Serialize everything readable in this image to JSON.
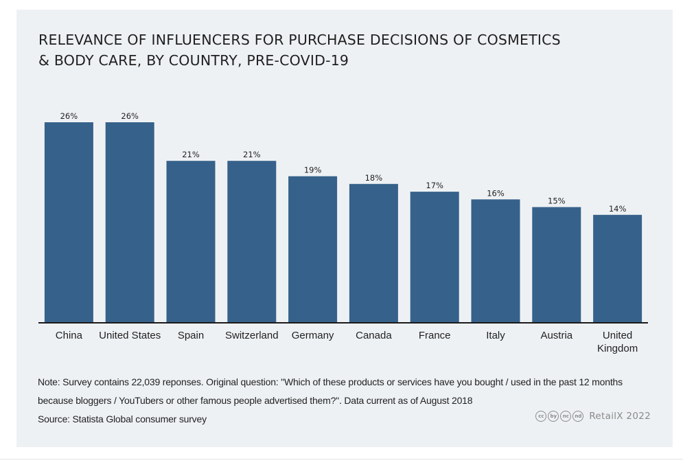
{
  "title_lines": [
    "RELEVANCE OF INFLUENCERS FOR PURCHASE DECISIONS OF COSMETICS",
    "& BODY CARE, BY COUNTRY, PRE-COVID-19"
  ],
  "chart_data": {
    "type": "bar",
    "categories": [
      [
        "China"
      ],
      [
        "United States"
      ],
      [
        "Spain"
      ],
      [
        "Switzerland"
      ],
      [
        "Germany"
      ],
      [
        "Canada"
      ],
      [
        "France"
      ],
      [
        "Italy"
      ],
      [
        "Austria"
      ],
      [
        "United",
        "Kingdom"
      ]
    ],
    "values": [
      26,
      26,
      21,
      21,
      19,
      18,
      17,
      16,
      15,
      14
    ],
    "value_labels": [
      "26%",
      "26%",
      "21%",
      "21%",
      "19%",
      "18%",
      "17%",
      "16%",
      "15%",
      "14%"
    ],
    "ylim": [
      0,
      26
    ],
    "grid": false,
    "bar_color": "#36618a"
  },
  "note": {
    "line1": "Note: Survey contains 22,039 reponses. Original question: \"Which of these products or services have you bought / used in the past 12 months",
    "line2": "because bloggers / YouTubers or other famous people advertised them?\". Data current as of August 2018",
    "source": "Source: Statista Global consumer survey"
  },
  "footer": {
    "license_icons": [
      "cc",
      "by",
      "nc",
      "nd"
    ],
    "license_icon_names": [
      "cc-icon",
      "attribution-icon",
      "noncommercial-icon",
      "noderivatives-icon"
    ],
    "brand": "RetailX 2022"
  },
  "colors": {
    "background": "#eef1f4",
    "bar": "#36618a",
    "axis": "#1a1a1a"
  }
}
